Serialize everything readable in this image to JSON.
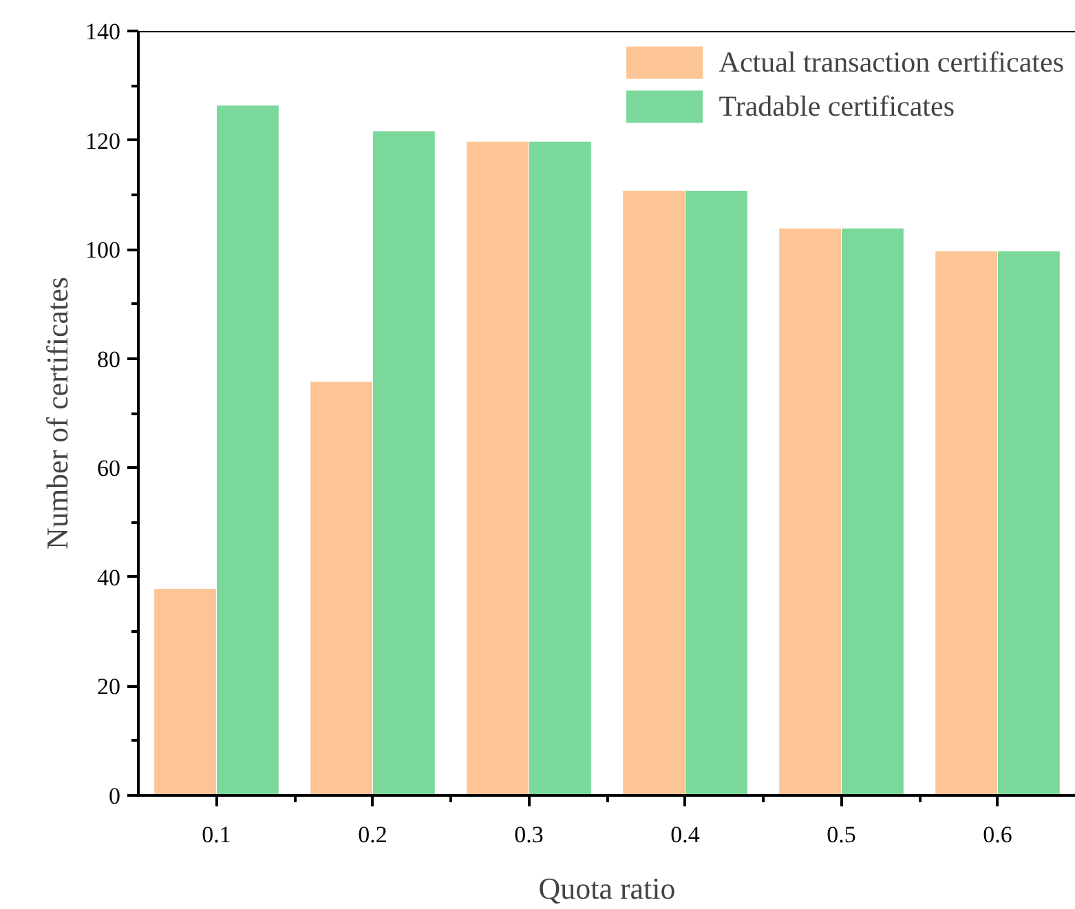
{
  "chart_data": {
    "type": "bar",
    "xlabel": "Quota ratio",
    "ylabel": "Number of certificates",
    "x": [
      0.1,
      0.2,
      0.3,
      0.4,
      0.5,
      0.6
    ],
    "series": [
      {
        "name": "Actual transaction certificates",
        "color": "#fdc596",
        "values": [
          37.9,
          75.8,
          119.8,
          110.8,
          103.9,
          99.7
        ]
      },
      {
        "name": "Tradable certificates",
        "color": "#7ad99a",
        "values": [
          126.4,
          121.7,
          119.8,
          110.8,
          103.9,
          99.7
        ]
      }
    ],
    "xlim": [
      0.05,
      0.65
    ],
    "xticks": [
      0.1,
      {
        "value": 0.15,
        "label": null
      },
      0.2,
      {
        "value": 0.25,
        "label": null
      },
      0.3,
      {
        "value": 0.35,
        "label": null
      },
      0.4,
      {
        "value": 0.45,
        "label": null
      },
      0.5,
      {
        "value": 0.55,
        "label": null
      },
      0.6
    ],
    "ylim": [
      0,
      140
    ],
    "yticks": [
      0,
      {
        "value": 10,
        "label": null
      },
      20,
      {
        "value": 30,
        "label": null
      },
      40,
      {
        "value": 50,
        "label": null
      },
      60,
      {
        "value": 70,
        "label": null
      },
      80,
      {
        "value": 90,
        "label": null
      },
      100,
      {
        "value": 110,
        "label": null
      },
      120,
      {
        "value": 130,
        "label": null
      },
      140
    ],
    "grid": false,
    "legend": "top right"
  }
}
